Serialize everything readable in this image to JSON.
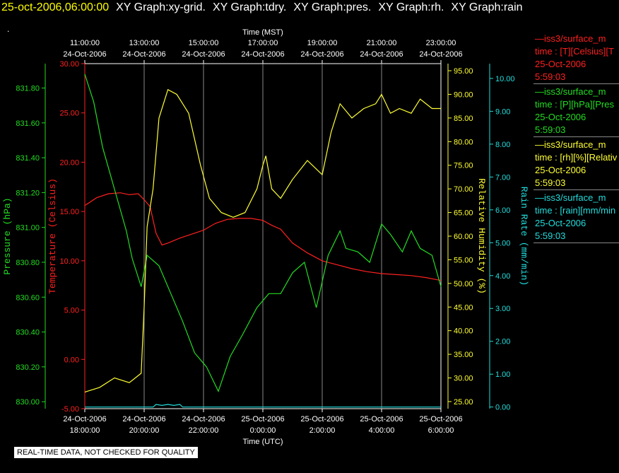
{
  "header": {
    "datetime": "25-oct-2006,06:00:00",
    "graphs": [
      "XY Graph:xy-grid.",
      "XY Graph:tdry.",
      "XY Graph:pres.",
      "XY Graph:rh.",
      "XY Graph:rain"
    ]
  },
  "dot": ".",
  "quality_note": "REAL-TIME DATA, NOT CHECKED FOR QUALITY",
  "legend": [
    {
      "line1": "—iss3/surface_m",
      "line2": "time : [T][Celsius][T",
      "line3": "25-Oct-2006",
      "line4": "5:59:03",
      "color": "#ff2020"
    },
    {
      "line1": "—iss3/surface_m",
      "line2": "time : [P][hPa][Pres",
      "line3": "25-Oct-2006",
      "line4": "5:59:03",
      "color": "#22dd22"
    },
    {
      "line1": "—iss3/surface_m",
      "line2": "time : [rh][%][Relativ",
      "line3": "25-Oct-2006",
      "line4": "5:59:03",
      "color": "#ffff33"
    },
    {
      "line1": "—iss3/surface_m",
      "line2": "time : [rain][mm/min",
      "line3": "25-Oct-2006",
      "line4": "5:59:03",
      "color": "#22dddd"
    }
  ],
  "chart_data": {
    "type": "line",
    "top_axis": {
      "label": "Time (MST)",
      "ticks": [
        [
          "11:00:00",
          "24-Oct-2006"
        ],
        [
          "13:00:00",
          "24-Oct-2006"
        ],
        [
          "15:00:00",
          "24-Oct-2006"
        ],
        [
          "17:00:00",
          "24-Oct-2006"
        ],
        [
          "19:00:00",
          "24-Oct-2006"
        ],
        [
          "21:00:00",
          "24-Oct-2006"
        ],
        [
          "23:00:00",
          "24-Oct-2006"
        ]
      ]
    },
    "bottom_axis": {
      "label": "Time (UTC)",
      "ticks": [
        [
          "24-Oct-2006",
          "18:00:00"
        ],
        [
          "24-Oct-2006",
          "20:00:00"
        ],
        [
          "24-Oct-2006",
          "22:00:00"
        ],
        [
          "25-Oct-2006",
          "0:00:00"
        ],
        [
          "25-Oct-2006",
          "2:00:00"
        ],
        [
          "25-Oct-2006",
          "4:00:00"
        ],
        [
          "25-Oct-2006",
          "6:00:00"
        ]
      ]
    },
    "x_hours_utc": [
      18,
      30
    ],
    "temperature": {
      "label": "Temperature (Celsius)",
      "color": "#ff2020",
      "ylim": [
        -5,
        30
      ],
      "ticks": [
        "-5.00",
        "0.00",
        "5.00",
        "10.00",
        "15.00",
        "20.00",
        "25.00",
        "30.00"
      ],
      "x": [
        18.0,
        18.4,
        18.8,
        19.2,
        19.5,
        19.8,
        20.0,
        20.2,
        20.4,
        20.6,
        20.8,
        21.2,
        21.6,
        22.0,
        22.4,
        22.8,
        23.2,
        23.6,
        24.0,
        24.3,
        24.6,
        25.0,
        25.5,
        26.0,
        26.5,
        27.0,
        27.5,
        28.0,
        28.5,
        29.0,
        29.5,
        30.0
      ],
      "values": [
        15.6,
        16.4,
        16.8,
        16.9,
        16.7,
        16.8,
        16.2,
        15.5,
        12.8,
        11.6,
        11.8,
        12.3,
        12.7,
        13.1,
        13.8,
        14.2,
        14.3,
        14.3,
        14.1,
        13.6,
        13.2,
        11.8,
        10.8,
        10.0,
        9.6,
        9.2,
        8.9,
        8.7,
        8.6,
        8.5,
        8.3,
        8.0
      ]
    },
    "pressure": {
      "label": "Pressure (hPa)",
      "color": "#22dd22",
      "ylim": [
        829.96,
        831.94
      ],
      "ticks": [
        "830.00",
        "830.20",
        "830.40",
        "830.60",
        "830.80",
        "831.00",
        "831.20",
        "831.40",
        "831.60",
        "831.80"
      ],
      "x": [
        18.0,
        18.3,
        18.6,
        19.0,
        19.4,
        19.6,
        19.9,
        20.1,
        20.5,
        20.9,
        21.3,
        21.7,
        22.1,
        22.5,
        22.9,
        23.3,
        23.8,
        24.2,
        24.6,
        25.0,
        25.4,
        25.8,
        26.2,
        26.6,
        26.8,
        27.2,
        27.6,
        28.0,
        28.3,
        28.7,
        29.0,
        29.3,
        29.7,
        30.0
      ],
      "values": [
        831.88,
        831.72,
        831.46,
        831.22,
        830.98,
        830.82,
        830.66,
        830.84,
        830.78,
        830.62,
        830.46,
        830.28,
        830.2,
        830.06,
        830.26,
        830.38,
        830.54,
        830.62,
        830.62,
        830.74,
        830.8,
        830.54,
        830.84,
        830.98,
        830.88,
        830.86,
        830.8,
        831.02,
        830.96,
        830.86,
        830.98,
        830.88,
        830.84,
        830.66
      ]
    },
    "humidity": {
      "label": "Relative Humidity (%)",
      "color": "#ffff33",
      "ylim": [
        23.5,
        96.5
      ],
      "ticks": [
        "25.00",
        "30.00",
        "35.00",
        "40.00",
        "45.00",
        "50.00",
        "55.00",
        "60.00",
        "65.00",
        "70.00",
        "75.00",
        "80.00",
        "85.00",
        "90.00",
        "95.00"
      ],
      "x": [
        18.0,
        18.5,
        19.0,
        19.5,
        19.9,
        20.0,
        20.1,
        20.3,
        20.5,
        20.8,
        21.1,
        21.5,
        21.9,
        22.2,
        22.6,
        23.0,
        23.4,
        23.8,
        24.0,
        24.1,
        24.3,
        24.6,
        25.0,
        25.5,
        26.0,
        26.3,
        26.6,
        27.0,
        27.4,
        27.8,
        28.0,
        28.3,
        28.6,
        29.0,
        29.3,
        29.7,
        30.0
      ],
      "values": [
        27,
        28,
        30,
        29,
        31,
        45,
        62,
        70,
        85,
        91,
        90,
        86,
        75,
        68,
        65,
        64,
        65,
        70,
        75,
        77,
        70,
        68,
        72,
        76,
        73,
        82,
        88,
        85,
        87,
        88,
        90,
        86,
        87,
        86,
        89,
        87,
        87
      ]
    },
    "rain": {
      "label": "Rain Rate (mm/min)",
      "color": "#22dddd",
      "ylim": [
        -0.05,
        10.45
      ],
      "ticks": [
        "0.00",
        "1.00",
        "2.00",
        "3.00",
        "4.00",
        "5.00",
        "6.00",
        "7.00",
        "8.00",
        "9.00",
        "10.00"
      ],
      "x": [
        18.0,
        20.3,
        20.4,
        20.6,
        20.8,
        21.0,
        21.2,
        21.3,
        30.0
      ],
      "values": [
        0,
        0,
        0.08,
        0.05,
        0.08,
        0.05,
        0.08,
        0,
        0
      ]
    }
  }
}
